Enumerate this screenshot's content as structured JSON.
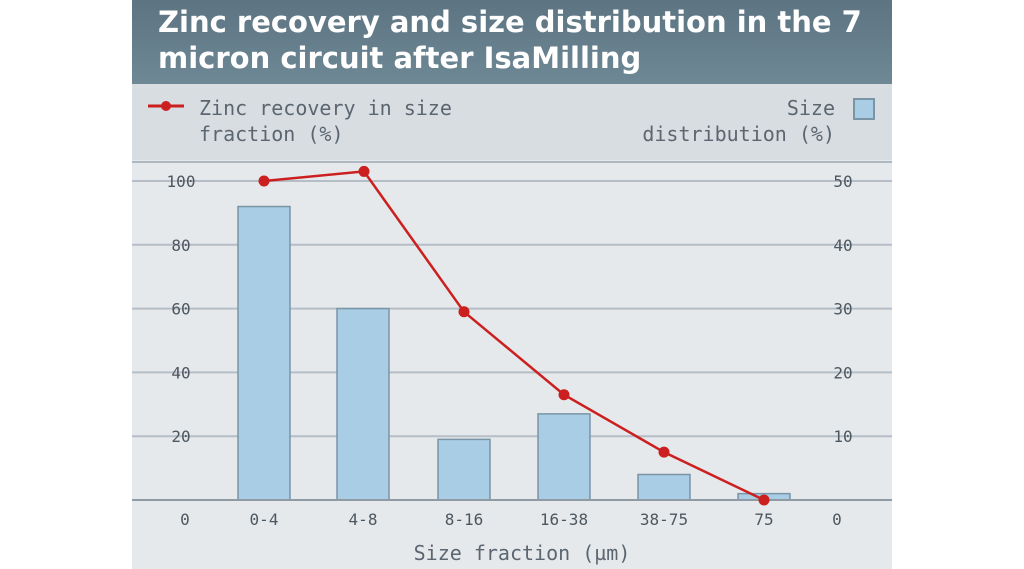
{
  "chart_data": {
    "type": "bar",
    "title": "Zinc recovery and size distribution in the 7 micron circuit after IsaMilling",
    "xlabel": "Size fraction (µm)",
    "categories": [
      "0-4",
      "4-8",
      "8-16",
      "16-38",
      "38-75",
      "75"
    ],
    "x_origin_label": "0",
    "series": [
      {
        "name": "Zinc recovery in size fraction (%)",
        "type": "line",
        "axis": "left",
        "values": [
          100,
          103,
          59,
          33,
          15,
          0
        ],
        "color": "#cc1f1f"
      },
      {
        "name": "Size distribution (%)",
        "type": "bar",
        "axis": "right",
        "values": [
          46,
          30,
          9.5,
          13.5,
          4,
          1
        ],
        "color": "#a9cde4",
        "edge_color": "#7a95a6"
      }
    ],
    "y_left": {
      "range": [
        0,
        100
      ],
      "ticks": [
        0,
        20,
        40,
        60,
        80,
        100
      ]
    },
    "y_right": {
      "range": [
        0,
        50
      ],
      "ticks": [
        0,
        10,
        20,
        30,
        40,
        50
      ]
    },
    "grid": true,
    "legend_placement": "top"
  },
  "legend": {
    "zinc_label": "Zinc recovery in size\nfraction (%)",
    "size_label": "Size\ndistribution (%)"
  }
}
